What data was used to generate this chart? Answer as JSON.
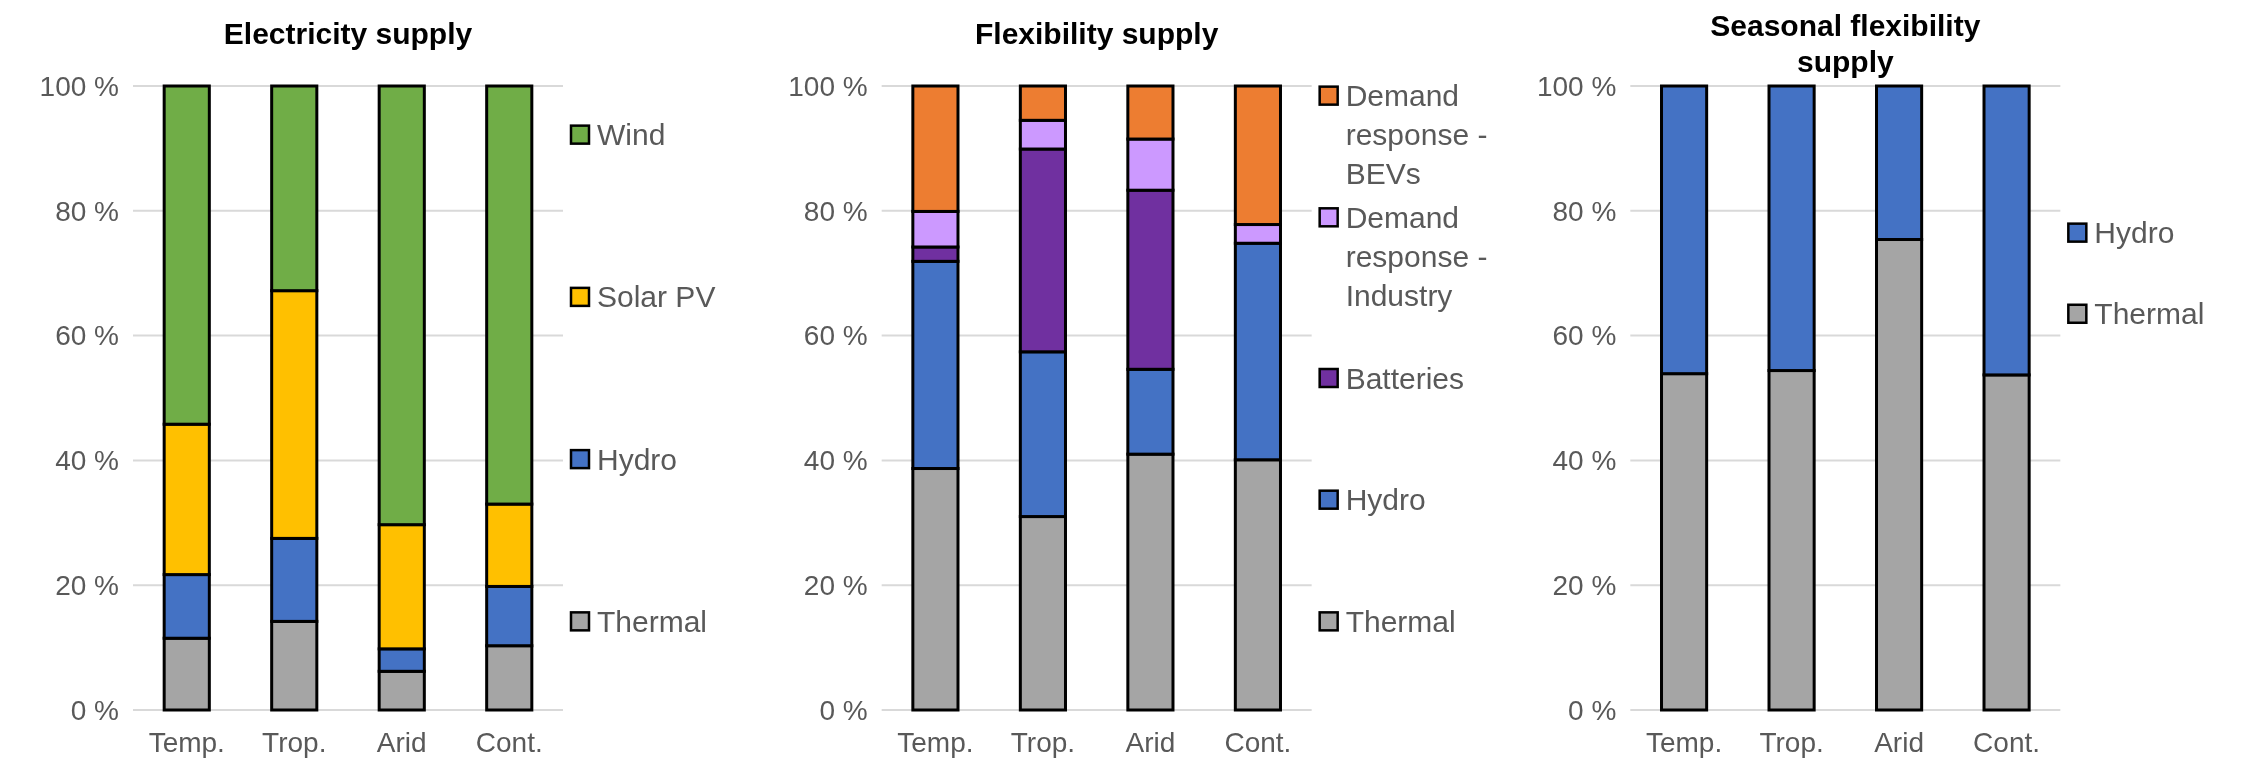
{
  "chart_data": [
    {
      "type": "bar",
      "stacked": true,
      "title": "Electricity supply",
      "categories": [
        "Temp.",
        "Trop.",
        "Arid",
        "Cont."
      ],
      "ylim": [
        0,
        100
      ],
      "yticks": [
        {
          "value": 0,
          "label": "0 %"
        },
        {
          "value": 20,
          "label": "20 %"
        },
        {
          "value": 40,
          "label": "40 %"
        },
        {
          "value": 60,
          "label": "60 %"
        },
        {
          "value": 80,
          "label": "80 %"
        },
        {
          "value": 100,
          "label": "100 %"
        }
      ],
      "grid": "y",
      "legend": "right",
      "series": [
        {
          "name": "Thermal",
          "color": "#a5a5a5",
          "values": [
            11.5,
            14.2,
            6.2,
            10.3
          ]
        },
        {
          "name": "Hydro",
          "color": "#4472c4",
          "values": [
            10.2,
            13.3,
            3.6,
            9.5
          ]
        },
        {
          "name": "Solar PV",
          "color": "#ffc000",
          "values": [
            24.1,
            39.7,
            19.9,
            13.2
          ]
        },
        {
          "name": "Wind",
          "color": "#70ad47",
          "values": [
            54.2,
            32.8,
            70.3,
            67.0
          ]
        }
      ]
    },
    {
      "type": "bar",
      "stacked": true,
      "title": "Flexibility supply",
      "categories": [
        "Temp.",
        "Trop.",
        "Arid",
        "Cont."
      ],
      "ylim": [
        0,
        100
      ],
      "yticks": [
        {
          "value": 0,
          "label": "0 %"
        },
        {
          "value": 20,
          "label": "20 %"
        },
        {
          "value": 40,
          "label": "40 %"
        },
        {
          "value": 60,
          "label": "60 %"
        },
        {
          "value": 80,
          "label": "80 %"
        },
        {
          "value": 100,
          "label": "100 %"
        }
      ],
      "grid": "y",
      "legend": "right",
      "series": [
        {
          "name": "Thermal",
          "color": "#a5a5a5",
          "values": [
            38.7,
            31.0,
            41.0,
            40.1
          ]
        },
        {
          "name": "Hydro",
          "color": "#4472c4",
          "values": [
            33.2,
            26.4,
            13.6,
            34.7
          ]
        },
        {
          "name": "Batteries",
          "color": "#7030a0",
          "values": [
            2.3,
            32.5,
            28.7,
            0
          ]
        },
        {
          "name": "Demand response - Industry",
          "color": "#cc99ff",
          "values": [
            5.7,
            4.6,
            8.2,
            3.0
          ]
        },
        {
          "name": "Demand response - BEVs",
          "color": "#ed7d31",
          "values": [
            20.1,
            5.5,
            8.5,
            22.2
          ]
        }
      ]
    },
    {
      "type": "bar",
      "stacked": true,
      "title": "Seasonal flexibility supply",
      "categories": [
        "Temp.",
        "Trop.",
        "Arid",
        "Cont."
      ],
      "ylim": [
        0,
        100
      ],
      "yticks": [
        {
          "value": 0,
          "label": "0 %"
        },
        {
          "value": 20,
          "label": "20 %"
        },
        {
          "value": 40,
          "label": "40 %"
        },
        {
          "value": 60,
          "label": "60 %"
        },
        {
          "value": 80,
          "label": "80 %"
        },
        {
          "value": 100,
          "label": "100 %"
        }
      ],
      "grid": "y",
      "legend": "right",
      "series": [
        {
          "name": "Thermal",
          "color": "#a5a5a5",
          "values": [
            53.9,
            54.4,
            75.4,
            53.7
          ]
        },
        {
          "name": "Hydro",
          "color": "#4472c4",
          "values": [
            46.1,
            45.6,
            24.6,
            46.3
          ]
        }
      ]
    }
  ]
}
